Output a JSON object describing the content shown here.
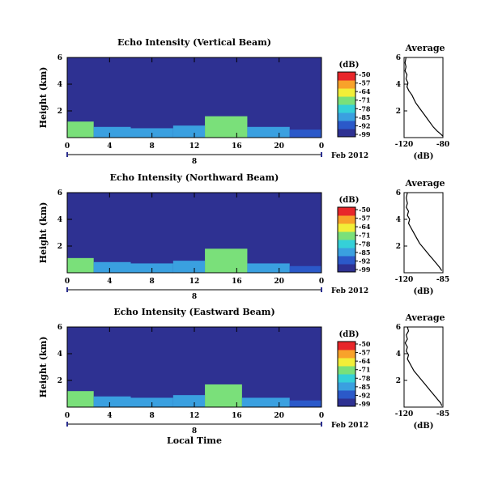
{
  "chart_data": {
    "type": "heatmap",
    "date_label": "Feb 2012",
    "day_label": "8",
    "x_label": "Local Time",
    "x_range": [
      0,
      24
    ],
    "x_ticks": [
      "0",
      "4",
      "8",
      "12",
      "16",
      "20",
      "0"
    ],
    "y_label": "Height (km)",
    "y_range": [
      0,
      6
    ],
    "y_ticks": [
      "2",
      "4",
      "6"
    ],
    "colorbar_unit": "(dB)",
    "colorbar_ticks": [
      "-50",
      "-57",
      "-64",
      "-71",
      "-78",
      "-85",
      "-92",
      "-99"
    ],
    "colors": [
      "#2e3192",
      "#2b59c9",
      "#3aa0e0",
      "#35d0d8",
      "#7ae07a",
      "#f2ee38",
      "#f8a22a",
      "#e8262a"
    ],
    "panels": [
      {
        "title": "Echo Intensity (Vertical Beam)",
        "profile_title": "Average",
        "profile_xlabel": "(dB)",
        "profile_xticks": [
          "-120",
          "-80"
        ],
        "profile_xrange": [
          -120,
          -80
        ],
        "profile_points": [
          [
            -118,
            6.0
          ],
          [
            -119,
            5.6
          ],
          [
            -118,
            5.3
          ],
          [
            -119,
            5.0
          ],
          [
            -117,
            4.7
          ],
          [
            -118,
            4.4
          ],
          [
            -116,
            4.1
          ],
          [
            -117,
            3.8
          ],
          [
            -115,
            3.5
          ],
          [
            -112,
            3.2
          ],
          [
            -110,
            2.9
          ],
          [
            -108,
            2.6
          ],
          [
            -105,
            2.3
          ],
          [
            -102,
            2.0
          ],
          [
            -99,
            1.7
          ],
          [
            -96,
            1.4
          ],
          [
            -93,
            1.1
          ],
          [
            -90,
            0.8
          ],
          [
            -86,
            0.5
          ],
          [
            -82,
            0.25
          ],
          [
            -80,
            0.1
          ]
        ],
        "cells": [
          {
            "x": [
              0,
              2.5
            ],
            "y": [
              0,
              1.2
            ],
            "lev": 4
          },
          {
            "x": [
              2.5,
              6
            ],
            "y": [
              0,
              0.8
            ],
            "lev": 2
          },
          {
            "x": [
              6,
              10
            ],
            "y": [
              0,
              0.7
            ],
            "lev": 2
          },
          {
            "x": [
              10,
              13
            ],
            "y": [
              0,
              0.9
            ],
            "lev": 2
          },
          {
            "x": [
              13,
              17
            ],
            "y": [
              0,
              1.6
            ],
            "lev": 4
          },
          {
            "x": [
              17,
              21
            ],
            "y": [
              0,
              0.8
            ],
            "lev": 2
          },
          {
            "x": [
              21,
              24
            ],
            "y": [
              0,
              0.6
            ],
            "lev": 1
          }
        ]
      },
      {
        "title": "Echo Intensity (Northward Beam)",
        "profile_title": "Average",
        "profile_xlabel": "(dB)",
        "profile_xticks": [
          "-120",
          "-85"
        ],
        "profile_xrange": [
          -120,
          -85
        ],
        "profile_points": [
          [
            -117,
            6.0
          ],
          [
            -118,
            5.6
          ],
          [
            -117,
            5.2
          ],
          [
            -118,
            4.9
          ],
          [
            -116,
            4.6
          ],
          [
            -117,
            4.3
          ],
          [
            -115,
            4.0
          ],
          [
            -116,
            3.7
          ],
          [
            -114,
            3.4
          ],
          [
            -112,
            3.1
          ],
          [
            -110,
            2.8
          ],
          [
            -108,
            2.5
          ],
          [
            -106,
            2.2
          ],
          [
            -103,
            1.9
          ],
          [
            -100,
            1.6
          ],
          [
            -97,
            1.3
          ],
          [
            -94,
            1.0
          ],
          [
            -91,
            0.7
          ],
          [
            -88,
            0.4
          ],
          [
            -86,
            0.15
          ]
        ],
        "cells": [
          {
            "x": [
              0,
              2.5
            ],
            "y": [
              0,
              1.1
            ],
            "lev": 4
          },
          {
            "x": [
              2.5,
              6
            ],
            "y": [
              0,
              0.8
            ],
            "lev": 2
          },
          {
            "x": [
              6,
              10
            ],
            "y": [
              0,
              0.7
            ],
            "lev": 2
          },
          {
            "x": [
              10,
              13
            ],
            "y": [
              0,
              0.9
            ],
            "lev": 2
          },
          {
            "x": [
              13,
              17
            ],
            "y": [
              0,
              1.8
            ],
            "lev": 4
          },
          {
            "x": [
              17,
              21
            ],
            "y": [
              0,
              0.7
            ],
            "lev": 2
          },
          {
            "x": [
              21,
              24
            ],
            "y": [
              0,
              0.5
            ],
            "lev": 1
          }
        ]
      },
      {
        "title": "Echo Intensity (Eastward Beam)",
        "profile_title": "Average",
        "profile_xlabel": "(dB)",
        "profile_xticks": [
          "-120",
          "-85"
        ],
        "profile_xrange": [
          -120,
          -85
        ],
        "profile_points": [
          [
            -117,
            6.0
          ],
          [
            -116,
            5.7
          ],
          [
            -118,
            5.4
          ],
          [
            -117,
            5.1
          ],
          [
            -119,
            4.8
          ],
          [
            -117,
            4.5
          ],
          [
            -118,
            4.2
          ],
          [
            -116,
            3.9
          ],
          [
            -117,
            3.6
          ],
          [
            -115,
            3.3
          ],
          [
            -113,
            3.0
          ],
          [
            -111,
            2.7
          ],
          [
            -108,
            2.4
          ],
          [
            -105,
            2.1
          ],
          [
            -102,
            1.8
          ],
          [
            -99,
            1.5
          ],
          [
            -96,
            1.2
          ],
          [
            -93,
            0.9
          ],
          [
            -90,
            0.6
          ],
          [
            -87,
            0.3
          ],
          [
            -86,
            0.1
          ]
        ],
        "cells": [
          {
            "x": [
              0,
              2.5
            ],
            "y": [
              0,
              1.2
            ],
            "lev": 4
          },
          {
            "x": [
              2.5,
              6
            ],
            "y": [
              0,
              0.8
            ],
            "lev": 2
          },
          {
            "x": [
              6,
              10
            ],
            "y": [
              0,
              0.7
            ],
            "lev": 2
          },
          {
            "x": [
              10,
              13
            ],
            "y": [
              0,
              0.9
            ],
            "lev": 2
          },
          {
            "x": [
              13,
              16.5
            ],
            "y": [
              0,
              1.7
            ],
            "lev": 4
          },
          {
            "x": [
              16.5,
              21
            ],
            "y": [
              0,
              0.7
            ],
            "lev": 2
          },
          {
            "x": [
              21,
              24
            ],
            "y": [
              0,
              0.5
            ],
            "lev": 1
          }
        ]
      }
    ]
  }
}
